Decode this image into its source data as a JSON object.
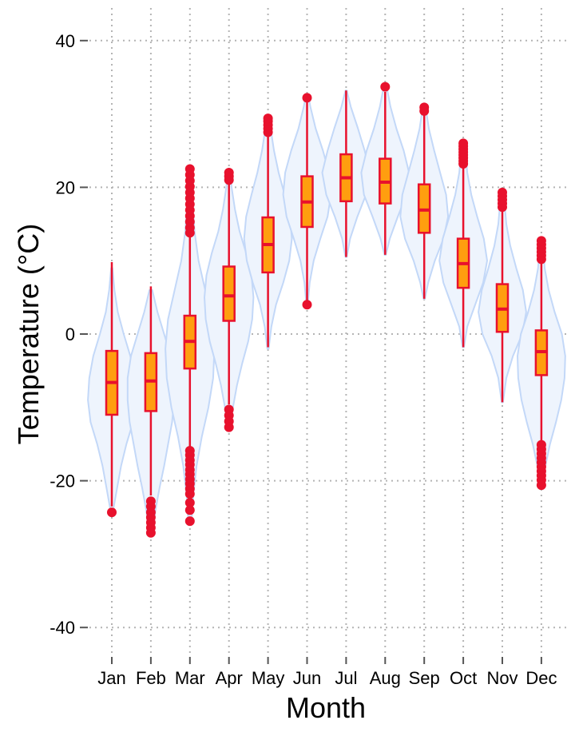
{
  "chart_data": {
    "type": "violin",
    "title": "",
    "xlabel": "Month",
    "ylabel": "Temperature (°C)",
    "ylim": [
      -43,
      44
    ],
    "yticks": [
      -40,
      -20,
      0,
      20,
      40
    ],
    "grid": "dotted major x and y",
    "legend": "none",
    "colors": {
      "violin_fill": "#eef4fd",
      "violin_stroke": "#c3d8f8",
      "box_fill": "#ff9e0f",
      "box_stroke": "#e8112d",
      "grid": "#b4b4b4"
    },
    "categories": [
      "Jan",
      "Feb",
      "Mar",
      "Apr",
      "May",
      "Jun",
      "Jul",
      "Aug",
      "Sep",
      "Oct",
      "Nov",
      "Dec"
    ],
    "boxes": [
      {
        "month": "Jan",
        "q1": -11.0,
        "median": -6.6,
        "q3": -2.3,
        "whisker_low": -23.5,
        "whisker_high": 9.8,
        "outliers": [
          -24.3
        ],
        "violin": [
          [
            -24,
            0.2
          ],
          [
            -21,
            0.8
          ],
          [
            -18,
            1.4
          ],
          [
            -15,
            2.2
          ],
          [
            -12,
            3.2
          ],
          [
            -9,
            3.6
          ],
          [
            -6,
            3.4
          ],
          [
            -3,
            2.8
          ],
          [
            0,
            1.8
          ],
          [
            3,
            0.9
          ],
          [
            6,
            0.4
          ],
          [
            9,
            0.1
          ]
        ]
      },
      {
        "month": "Feb",
        "q1": -10.5,
        "median": -6.4,
        "q3": -2.6,
        "whisker_low": -22.0,
        "whisker_high": 6.5,
        "outliers": [
          -22.8,
          -23.5,
          -24.3,
          -25.0,
          -25.7,
          -26.4,
          -27.1
        ],
        "violin": [
          [
            -27,
            0.3
          ],
          [
            -24,
            0.7
          ],
          [
            -21,
            1.3
          ],
          [
            -18,
            2.0
          ],
          [
            -15,
            2.6
          ],
          [
            -12,
            3.2
          ],
          [
            -9,
            3.5
          ],
          [
            -6,
            3.5
          ],
          [
            -3,
            3.0
          ],
          [
            0,
            2.0
          ],
          [
            3,
            1.0
          ],
          [
            6,
            0.2
          ]
        ]
      },
      {
        "month": "Mar",
        "q1": -4.7,
        "median": -1.0,
        "q3": 2.5,
        "whisker_low": -15.4,
        "whisker_high": 13.2,
        "outliers": [
          -15.9,
          -16.5,
          -17.2,
          -17.8,
          -18.5,
          -19.1,
          -19.8,
          -20.4,
          -21.1,
          -21.8,
          -23.0,
          -24.0,
          -25.5,
          13.8,
          14.5,
          15.3,
          16.1,
          16.9,
          17.7,
          18.5,
          19.3,
          20.1,
          20.9,
          21.7,
          22.5
        ],
        "violin": [
          [
            -26,
            0.2
          ],
          [
            -22,
            0.5
          ],
          [
            -18,
            1.0
          ],
          [
            -14,
            1.8
          ],
          [
            -10,
            2.8
          ],
          [
            -6,
            3.5
          ],
          [
            -2,
            3.7
          ],
          [
            2,
            3.3
          ],
          [
            6,
            2.3
          ],
          [
            10,
            1.3
          ],
          [
            14,
            0.7
          ],
          [
            18,
            0.4
          ],
          [
            22,
            0.2
          ]
        ]
      },
      {
        "month": "Apr",
        "q1": 1.8,
        "median": 5.2,
        "q3": 9.2,
        "whisker_low": -9.6,
        "whisker_high": 20.5,
        "outliers": [
          -10.3,
          -11.1,
          -11.9,
          -12.7,
          21.0,
          21.5,
          22.0
        ],
        "violin": [
          [
            -13,
            0.2
          ],
          [
            -10,
            0.6
          ],
          [
            -7,
            1.2
          ],
          [
            -4,
            2.0
          ],
          [
            -1,
            2.9
          ],
          [
            2,
            3.5
          ],
          [
            5,
            3.7
          ],
          [
            8,
            3.4
          ],
          [
            11,
            2.6
          ],
          [
            14,
            1.6
          ],
          [
            17,
            0.9
          ],
          [
            20,
            0.4
          ],
          [
            22,
            0.2
          ]
        ]
      },
      {
        "month": "May",
        "q1": 8.4,
        "median": 12.2,
        "q3": 15.9,
        "whisker_low": -1.8,
        "whisker_high": 26.9,
        "outliers": [
          27.5,
          28.0,
          28.5,
          29.0,
          29.4
        ],
        "violin": [
          [
            -2,
            0.1
          ],
          [
            1,
            0.5
          ],
          [
            4,
            1.2
          ],
          [
            7,
            2.3
          ],
          [
            10,
            3.2
          ],
          [
            13,
            3.6
          ],
          [
            16,
            3.3
          ],
          [
            19,
            2.5
          ],
          [
            22,
            1.6
          ],
          [
            25,
            0.9
          ],
          [
            28,
            0.4
          ],
          [
            29.5,
            0.2
          ]
        ]
      },
      {
        "month": "Jun",
        "q1": 14.6,
        "median": 18.0,
        "q3": 21.5,
        "whisker_low": 4.4,
        "whisker_high": 31.6,
        "outliers": [
          4.0,
          32.2
        ],
        "violin": [
          [
            4,
            0.1
          ],
          [
            7,
            0.4
          ],
          [
            10,
            1.0
          ],
          [
            13,
            2.0
          ],
          [
            16,
            3.1
          ],
          [
            19,
            3.6
          ],
          [
            22,
            3.3
          ],
          [
            25,
            2.4
          ],
          [
            28,
            1.3
          ],
          [
            31,
            0.5
          ],
          [
            32.5,
            0.2
          ]
        ]
      },
      {
        "month": "Jul",
        "q1": 18.1,
        "median": 21.3,
        "q3": 24.5,
        "whisker_low": 10.5,
        "whisker_high": 33.2,
        "outliers": [],
        "violin": [
          [
            10.5,
            0.1
          ],
          [
            13,
            0.6
          ],
          [
            16,
            1.7
          ],
          [
            19,
            3.0
          ],
          [
            22,
            3.6
          ],
          [
            25,
            2.8
          ],
          [
            28,
            1.8
          ],
          [
            31,
            0.7
          ],
          [
            33.2,
            0.1
          ]
        ]
      },
      {
        "month": "Aug",
        "q1": 17.8,
        "median": 20.7,
        "q3": 23.9,
        "whisker_low": 10.8,
        "whisker_high": 33.0,
        "outliers": [
          33.7
        ],
        "violin": [
          [
            10.8,
            0.1
          ],
          [
            13,
            0.7
          ],
          [
            16,
            1.9
          ],
          [
            19,
            3.2
          ],
          [
            22,
            3.6
          ],
          [
            25,
            2.8
          ],
          [
            28,
            1.7
          ],
          [
            31,
            0.8
          ],
          [
            33.8,
            0.2
          ]
        ]
      },
      {
        "month": "Sep",
        "q1": 13.8,
        "median": 16.9,
        "q3": 20.4,
        "whisker_low": 4.8,
        "whisker_high": 30.0,
        "outliers": [
          30.4,
          30.9
        ],
        "violin": [
          [
            4.8,
            0.1
          ],
          [
            7,
            0.6
          ],
          [
            10,
            1.6
          ],
          [
            13,
            2.9
          ],
          [
            16,
            3.6
          ],
          [
            19,
            3.3
          ],
          [
            22,
            2.4
          ],
          [
            25,
            1.5
          ],
          [
            28,
            0.7
          ],
          [
            31,
            0.2
          ]
        ]
      },
      {
        "month": "Oct",
        "q1": 6.3,
        "median": 9.6,
        "q3": 13.0,
        "whisker_low": -1.8,
        "whisker_high": 22.8,
        "outliers": [
          23.2,
          23.6,
          24.0,
          24.4,
          24.8,
          25.2,
          25.6,
          26.0
        ],
        "violin": [
          [
            -1.8,
            0.1
          ],
          [
            1,
            0.6
          ],
          [
            4,
            1.8
          ],
          [
            7,
            3.0
          ],
          [
            10,
            3.6
          ],
          [
            13,
            3.1
          ],
          [
            16,
            2.1
          ],
          [
            19,
            1.2
          ],
          [
            22,
            0.6
          ],
          [
            26,
            0.2
          ]
        ]
      },
      {
        "month": "Nov",
        "q1": 0.3,
        "median": 3.4,
        "q3": 6.8,
        "whisker_low": -9.3,
        "whisker_high": 16.8,
        "outliers": [
          17.3,
          17.8,
          18.3,
          18.8,
          19.3
        ],
        "violin": [
          [
            -9.3,
            0.1
          ],
          [
            -6,
            0.6
          ],
          [
            -3,
            1.6
          ],
          [
            0,
            3.0
          ],
          [
            3,
            3.6
          ],
          [
            6,
            3.1
          ],
          [
            9,
            2.1
          ],
          [
            12,
            1.2
          ],
          [
            15,
            0.6
          ],
          [
            19.3,
            0.2
          ]
        ]
      },
      {
        "month": "Dec",
        "q1": -5.6,
        "median": -2.4,
        "q3": 0.5,
        "whisker_low": -14.6,
        "whisker_high": 9.8,
        "outliers": [
          -15.1,
          -15.7,
          -16.3,
          -16.9,
          -17.5,
          -18.1,
          -18.7,
          -19.3,
          -19.9,
          -20.6,
          10.2,
          10.7,
          11.2,
          11.7,
          12.2,
          12.7
        ],
        "violin": [
          [
            -21,
            0.2
          ],
          [
            -18,
            0.6
          ],
          [
            -15,
            1.3
          ],
          [
            -12,
            2.2
          ],
          [
            -9,
            3.0
          ],
          [
            -6,
            3.5
          ],
          [
            -3,
            3.6
          ],
          [
            0,
            3.1
          ],
          [
            3,
            2.0
          ],
          [
            6,
            1.1
          ],
          [
            9,
            0.5
          ],
          [
            12.7,
            0.2
          ]
        ]
      }
    ]
  }
}
